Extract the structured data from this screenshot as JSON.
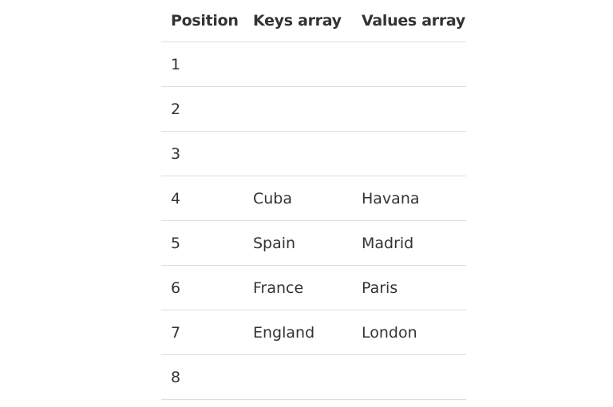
{
  "table": {
    "headers": [
      "Position",
      "Keys array",
      "Values array"
    ],
    "rows": [
      [
        "1",
        "",
        ""
      ],
      [
        "2",
        "",
        ""
      ],
      [
        "3",
        "",
        ""
      ],
      [
        "4",
        "Cuba",
        "Havana"
      ],
      [
        "5",
        "Spain",
        "Madrid"
      ],
      [
        "6",
        "France",
        "Paris"
      ],
      [
        "7",
        "England",
        "London"
      ],
      [
        "8",
        "",
        ""
      ]
    ]
  }
}
